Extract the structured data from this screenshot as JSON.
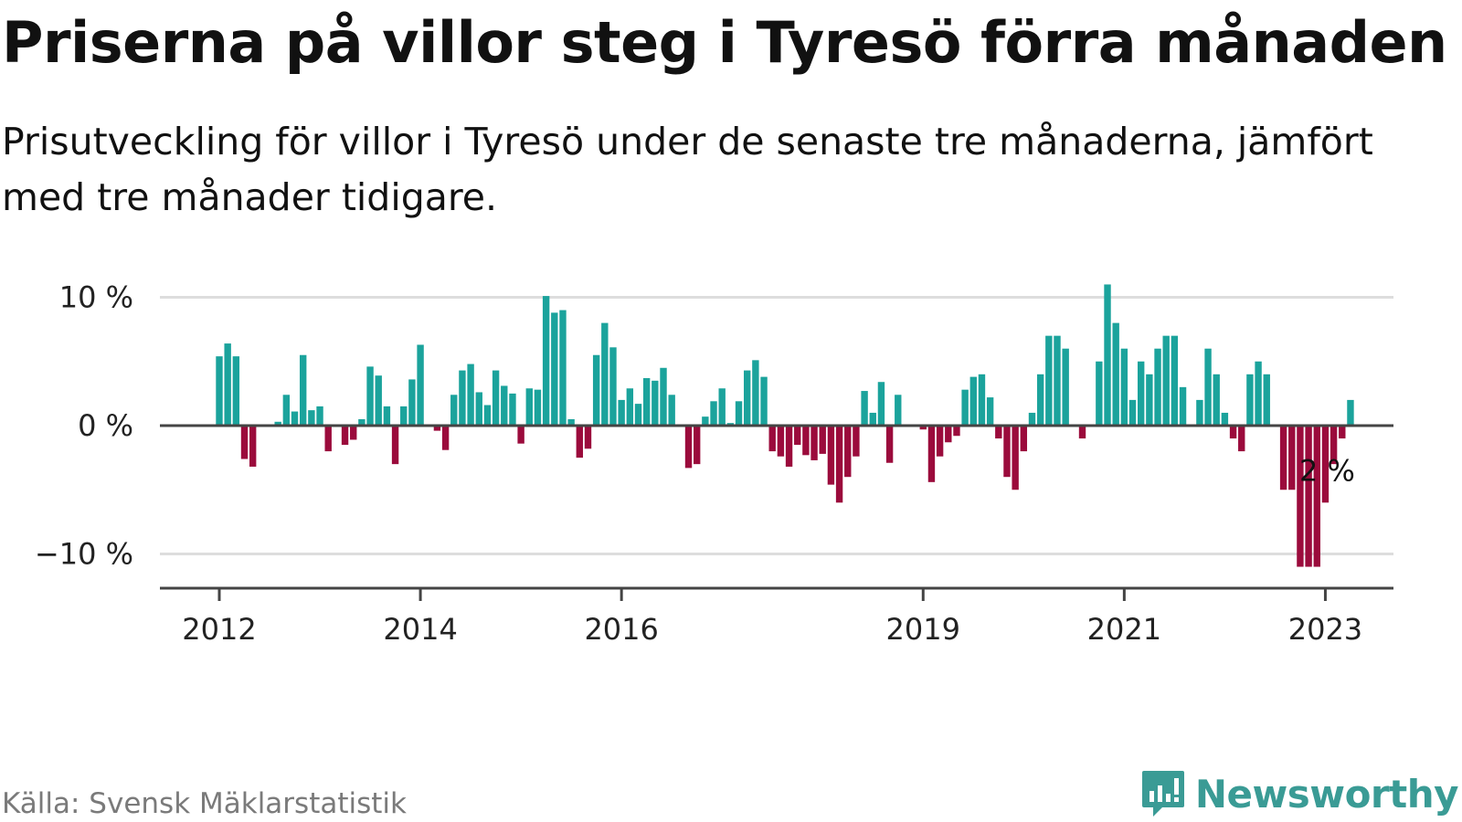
{
  "title": "Priserna på villor steg i Tyresö förra månaden",
  "subtitle": "Prisutveckling för villor i Tyresö under de senaste tre månaderna, jämfört med tre månader tidigare.",
  "source": "Källa: Svensk Mäklarstatistik",
  "brand": {
    "name": "Newsworthy",
    "icon": "newsworthy-logo-icon",
    "color": "#3a9b95"
  },
  "colors": {
    "positive": "#1ba39c",
    "negative": "#9b0b3c",
    "grid": "#dddddd",
    "baseline": "#444444"
  },
  "chart_data": {
    "type": "bar",
    "title": "",
    "xlabel": "",
    "ylabel": "",
    "ylim": [
      -12.7,
      11.5
    ],
    "yticks": [
      {
        "value": 10,
        "label": "10 %"
      },
      {
        "value": 0,
        "label": "0 %"
      },
      {
        "value": -10,
        "label": "−10 %"
      }
    ],
    "xticks": [
      {
        "index": 0,
        "label": "2012"
      },
      {
        "index": 24,
        "label": "2014"
      },
      {
        "index": 48,
        "label": "2016"
      },
      {
        "index": 84,
        "label": "2019"
      },
      {
        "index": 108,
        "label": "2021"
      },
      {
        "index": 132,
        "label": "2023"
      }
    ],
    "annotation": {
      "index": 132,
      "label": "2 %"
    },
    "start": "2012-01",
    "frequency": "monthly",
    "values": [
      5.4,
      6.4,
      5.4,
      -2.6,
      -3.2,
      null,
      null,
      0.3,
      2.4,
      1.1,
      5.5,
      1.2,
      1.5,
      -2.0,
      null,
      -1.5,
      -1.1,
      0.5,
      4.6,
      3.9,
      1.5,
      -3.0,
      1.5,
      3.6,
      6.3,
      null,
      -0.4,
      -1.9,
      2.4,
      4.3,
      4.8,
      2.6,
      1.6,
      4.3,
      3.1,
      2.5,
      -1.4,
      2.9,
      2.8,
      10.1,
      8.8,
      9.0,
      0.5,
      -2.5,
      -1.8,
      5.5,
      8.0,
      6.1,
      2.0,
      2.9,
      1.7,
      3.7,
      3.5,
      4.5,
      2.4,
      null,
      -3.3,
      -3.0,
      0.7,
      1.9,
      2.9,
      0.2,
      1.9,
      4.3,
      5.1,
      3.8,
      -2.0,
      -2.4,
      -3.2,
      -1.5,
      -2.3,
      -2.7,
      -2.2,
      -4.6,
      -6.0,
      -4.0,
      -2.4,
      2.7,
      1.0,
      3.4,
      -2.9,
      2.4,
      null,
      null,
      -0.3,
      -4.4,
      -2.4,
      -1.3,
      -0.8,
      2.8,
      3.8,
      4.0,
      2.2,
      -1.0,
      -4.0,
      -5.0,
      -2.0,
      1.0,
      4.0,
      7.0,
      7.0,
      6.0,
      null,
      -1.0,
      null,
      5.0,
      11.0,
      8.0,
      6.0,
      2.0,
      5.0,
      4.0,
      6.0,
      7.0,
      7.0,
      3.0,
      null,
      2.0,
      6.0,
      4.0,
      1.0,
      -1.0,
      -2.0,
      4.0,
      5.0,
      4.0,
      null,
      -5.0,
      -5.0,
      -11.0,
      -11.0,
      -11.0,
      -6.0,
      -3.0,
      -1.0,
      2.0
    ]
  }
}
